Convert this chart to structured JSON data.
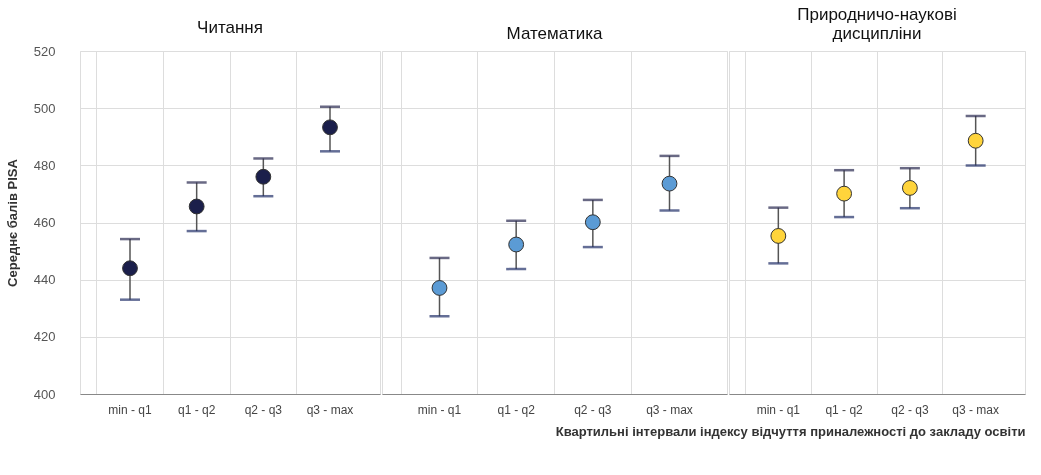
{
  "chart_data": [
    {
      "type": "scatter",
      "title": "Читання",
      "ylabel": "Середнє балів PISA",
      "categories": [
        "min - q1",
        "q1 - q2",
        "q2 - q3",
        "q3 - max"
      ],
      "ylim": [
        400,
        520
      ],
      "yticks": [
        400,
        420,
        440,
        460,
        480,
        500,
        520
      ],
      "grid": true,
      "marker": "circle",
      "series": [
        {
          "color": "#1b1f4b",
          "values": [
            444,
            465.6,
            476,
            493.3
          ],
          "errors": [
            [
              433,
              454.2
            ],
            [
              457,
              474
            ],
            [
              469.2,
              482.4
            ],
            [
              484.9,
              500.5
            ]
          ]
        }
      ]
    },
    {
      "type": "scatter",
      "title": "Математика",
      "categories": [
        "min - q1",
        "q1 - q2",
        "q2 - q3",
        "q3 - max"
      ],
      "ylim": [
        400,
        520
      ],
      "yticks": [
        400,
        420,
        440,
        460,
        480,
        500,
        520
      ],
      "grid": true,
      "marker": "circle",
      "tick_labels": "x",
      "series": [
        {
          "color": "#5b9bd5",
          "values": [
            437.1,
            452.3,
            460.1,
            473.6
          ],
          "errors": [
            [
              427.2,
              447.6
            ],
            [
              443.7,
              460.6
            ],
            [
              451.4,
              467.9
            ],
            [
              464.2,
              483.3
            ]
          ]
        }
      ]
    },
    {
      "type": "scatter",
      "title": "Природничо-наукові\nдисципліни",
      "xlabel": "Квартильні інтервали індексу відчуття приналежності до закладу освіти",
      "categories": [
        "min - q1",
        "q1 - q2",
        "q2 - q3",
        "q3 - max"
      ],
      "ylim": [
        400,
        520
      ],
      "yticks": [
        400,
        420,
        440,
        460,
        480,
        500,
        520
      ],
      "grid": true,
      "marker": "circle",
      "tick_labels": "x",
      "series": [
        {
          "color": "#ffd43b",
          "values": [
            455.3,
            470.1,
            472.1,
            488.6
          ],
          "errors": [
            [
              445.7,
              465.2
            ],
            [
              461.9,
              478.3
            ],
            [
              465,
              479
            ],
            [
              479.9,
              497.3
            ]
          ]
        }
      ]
    }
  ]
}
